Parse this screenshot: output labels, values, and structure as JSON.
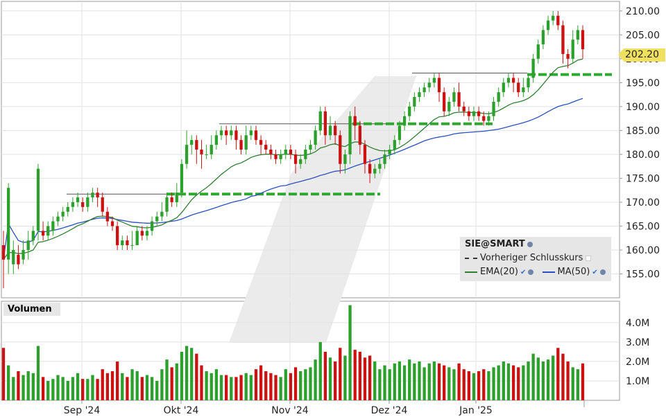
{
  "chart_data": {
    "type": "candlestick",
    "price_axis": {
      "ticks": [
        "210.00",
        "205.00",
        "200.00",
        "195.00",
        "190.00",
        "185.00",
        "180.00",
        "175.00",
        "170.00",
        "165.00",
        "160.00",
        "155.00"
      ],
      "ylim": [
        150,
        212
      ]
    },
    "volume_axis": {
      "ticks": [
        "4.0M",
        "3.0M",
        "2.0M",
        "1.0M"
      ],
      "ylim": [
        0,
        5.1
      ]
    },
    "x_ticks": [
      "Sep '24",
      "Okt '24",
      "Nov '24",
      "Dez '24",
      "Jan '25"
    ],
    "last_price": "202.20",
    "legend": {
      "symbol": "SIE@SMART",
      "prev_close": "Vorheriger Schlusskurs",
      "ema": "EMA(20)",
      "ma": "MA(50)"
    },
    "volume_title": "Volumen",
    "candles": [
      [
        161,
        158,
        164,
        152,
        2.7
      ],
      [
        158,
        173,
        174,
        155,
        1.8
      ],
      [
        157,
        160,
        162,
        155,
        1.2
      ],
      [
        159,
        157,
        161,
        156,
        1.5
      ],
      [
        158,
        160,
        162,
        157,
        1.3
      ],
      [
        160,
        162,
        164,
        158,
        1.5
      ],
      [
        162,
        164,
        165,
        161,
        1.4
      ],
      [
        164,
        177,
        178,
        162,
        2.8
      ],
      [
        164,
        163,
        166,
        162,
        1.2
      ],
      [
        163,
        165,
        166,
        162,
        1.0
      ],
      [
        164,
        166,
        167,
        163,
        1.1
      ],
      [
        166,
        167,
        168,
        165,
        1.3
      ],
      [
        167,
        168,
        169,
        166,
        1.2
      ],
      [
        168,
        169,
        170,
        167,
        1.0
      ],
      [
        169,
        170,
        171,
        168,
        1.2
      ],
      [
        170,
        171,
        172,
        169,
        1.4
      ],
      [
        170,
        169,
        171,
        168,
        1.1
      ],
      [
        169,
        171,
        172,
        168,
        1.1
      ],
      [
        171,
        172,
        173,
        170,
        1.3
      ],
      [
        172,
        171,
        173,
        169,
        1.1
      ],
      [
        171,
        168,
        172,
        167,
        1.6
      ],
      [
        168,
        166,
        169,
        165,
        1.4
      ],
      [
        166,
        165,
        167,
        164,
        1.5
      ],
      [
        165,
        161,
        166,
        160,
        2.0
      ],
      [
        161,
        162,
        163,
        160,
        1.4
      ],
      [
        162,
        161,
        163,
        160,
        1.2
      ],
      [
        161,
        161,
        164,
        160,
        1.6
      ],
      [
        161,
        164,
        165,
        163,
        1.5
      ],
      [
        164,
        163,
        165,
        162,
        1.2
      ],
      [
        163,
        164,
        165,
        162,
        1.3
      ],
      [
        164,
        166,
        167,
        163,
        1.2
      ],
      [
        166,
        167,
        168,
        165,
        1.0
      ],
      [
        167,
        168,
        170,
        166,
        1.6
      ],
      [
        168,
        171,
        172,
        167,
        2.1
      ],
      [
        171,
        170,
        172,
        169,
        1.7
      ],
      [
        170,
        172,
        174,
        169,
        1.9
      ],
      [
        172,
        178,
        179,
        171,
        2.5
      ],
      [
        178,
        182,
        185,
        177,
        2.8
      ],
      [
        182,
        183,
        184,
        180,
        2.7
      ],
      [
        183,
        181,
        184,
        178,
        2.4
      ],
      [
        181,
        180,
        183,
        177,
        1.8
      ],
      [
        180,
        180,
        182,
        179,
        1.5
      ],
      [
        180,
        182,
        184,
        179,
        1.4
      ],
      [
        182,
        184,
        185,
        181,
        1.6
      ],
      [
        184,
        185,
        186,
        183,
        1.3
      ],
      [
        185,
        184,
        186,
        182,
        1.3
      ],
      [
        184,
        185,
        186,
        183,
        1.2
      ],
      [
        185,
        183,
        186,
        181,
        1.2
      ],
      [
        183,
        181,
        184,
        180,
        1.3
      ],
      [
        181,
        184,
        186,
        180,
        1.4
      ],
      [
        184,
        185,
        186,
        183,
        1.3
      ],
      [
        185,
        183,
        186,
        182,
        1.6
      ],
      [
        183,
        182,
        184,
        180,
        1.8
      ],
      [
        182,
        181,
        183,
        180,
        1.5
      ],
      [
        181,
        180,
        182,
        179,
        1.4
      ],
      [
        180,
        179,
        181,
        178,
        1.3
      ],
      [
        179,
        180,
        181,
        178,
        1.2
      ],
      [
        180,
        181,
        182,
        179,
        1.6
      ],
      [
        181,
        180,
        182,
        179,
        1.4
      ],
      [
        180,
        178,
        181,
        176,
        1.7
      ],
      [
        178,
        179,
        180,
        177,
        1.5
      ],
      [
        179,
        181,
        182,
        178,
        1.6
      ],
      [
        181,
        182,
        183,
        180,
        1.7
      ],
      [
        182,
        185,
        186,
        181,
        2.1
      ],
      [
        185,
        189,
        190,
        184,
        3.0
      ],
      [
        189,
        184,
        190,
        182,
        2.5
      ],
      [
        184,
        186,
        188,
        183,
        2.2
      ],
      [
        186,
        184,
        187,
        182,
        2.0
      ],
      [
        184,
        178,
        185,
        176,
        2.7
      ],
      [
        178,
        180,
        181,
        176,
        2.3
      ],
      [
        180,
        188,
        189,
        178,
        4.9
      ],
      [
        188,
        186,
        190,
        183,
        2.6
      ],
      [
        186,
        182,
        187,
        180,
        2.5
      ],
      [
        182,
        178,
        183,
        176,
        2.2
      ],
      [
        178,
        176,
        179,
        174,
        2.3
      ],
      [
        176,
        177,
        178,
        175,
        2.0
      ],
      [
        177,
        178,
        179,
        176,
        1.6
      ],
      [
        178,
        180,
        181,
        177,
        1.8
      ],
      [
        180,
        181,
        182,
        179,
        1.6
      ],
      [
        181,
        183,
        184,
        180,
        1.9
      ],
      [
        183,
        186,
        187,
        182,
        2.0
      ],
      [
        186,
        188,
        189,
        185,
        1.8
      ],
      [
        188,
        190,
        191,
        187,
        2.1
      ],
      [
        190,
        192,
        193,
        189,
        1.9
      ],
      [
        192,
        193,
        194,
        191,
        2.0
      ],
      [
        193,
        194,
        195,
        192,
        1.7
      ],
      [
        194,
        195,
        196,
        193,
        1.9
      ],
      [
        195,
        196,
        197,
        194,
        2.0
      ],
      [
        196,
        193,
        197,
        191,
        1.9
      ],
      [
        193,
        189,
        194,
        188,
        1.8
      ],
      [
        189,
        191,
        192,
        188,
        1.7
      ],
      [
        191,
        193,
        194,
        190,
        1.6
      ],
      [
        193,
        190,
        195,
        189,
        1.9
      ],
      [
        190,
        189,
        191,
        188,
        1.6
      ],
      [
        189,
        188,
        190,
        187,
        1.5
      ],
      [
        188,
        189,
        190,
        187,
        1.4
      ],
      [
        189,
        188,
        190,
        187,
        1.5
      ],
      [
        188,
        187,
        189,
        186,
        1.6
      ],
      [
        187,
        188,
        189,
        186,
        1.5
      ],
      [
        188,
        191,
        192,
        187,
        1.7
      ],
      [
        191,
        193,
        194,
        190,
        1.8
      ],
      [
        193,
        195,
        196,
        192,
        2.0
      ],
      [
        195,
        196,
        197,
        194,
        1.9
      ],
      [
        196,
        195,
        197,
        193,
        1.8
      ],
      [
        195,
        193,
        196,
        192,
        1.7
      ],
      [
        193,
        194,
        196,
        192,
        1.8
      ],
      [
        194,
        196,
        197,
        193,
        2.0
      ],
      [
        196,
        200,
        201,
        195,
        2.4
      ],
      [
        200,
        203,
        204,
        199,
        2.2
      ],
      [
        203,
        206,
        207,
        202,
        2.0
      ],
      [
        206,
        208,
        209,
        205,
        2.1
      ],
      [
        208,
        209,
        210,
        207,
        2.3
      ],
      [
        209,
        207,
        210,
        206,
        2.7
      ],
      [
        207,
        201,
        208,
        199,
        2.4
      ],
      [
        201,
        200,
        202,
        198,
        2.0
      ],
      [
        200,
        204,
        206,
        199,
        1.7
      ],
      [
        204,
        206,
        207,
        203,
        1.6
      ],
      [
        206,
        202,
        207,
        200,
        1.9
      ]
    ]
  }
}
